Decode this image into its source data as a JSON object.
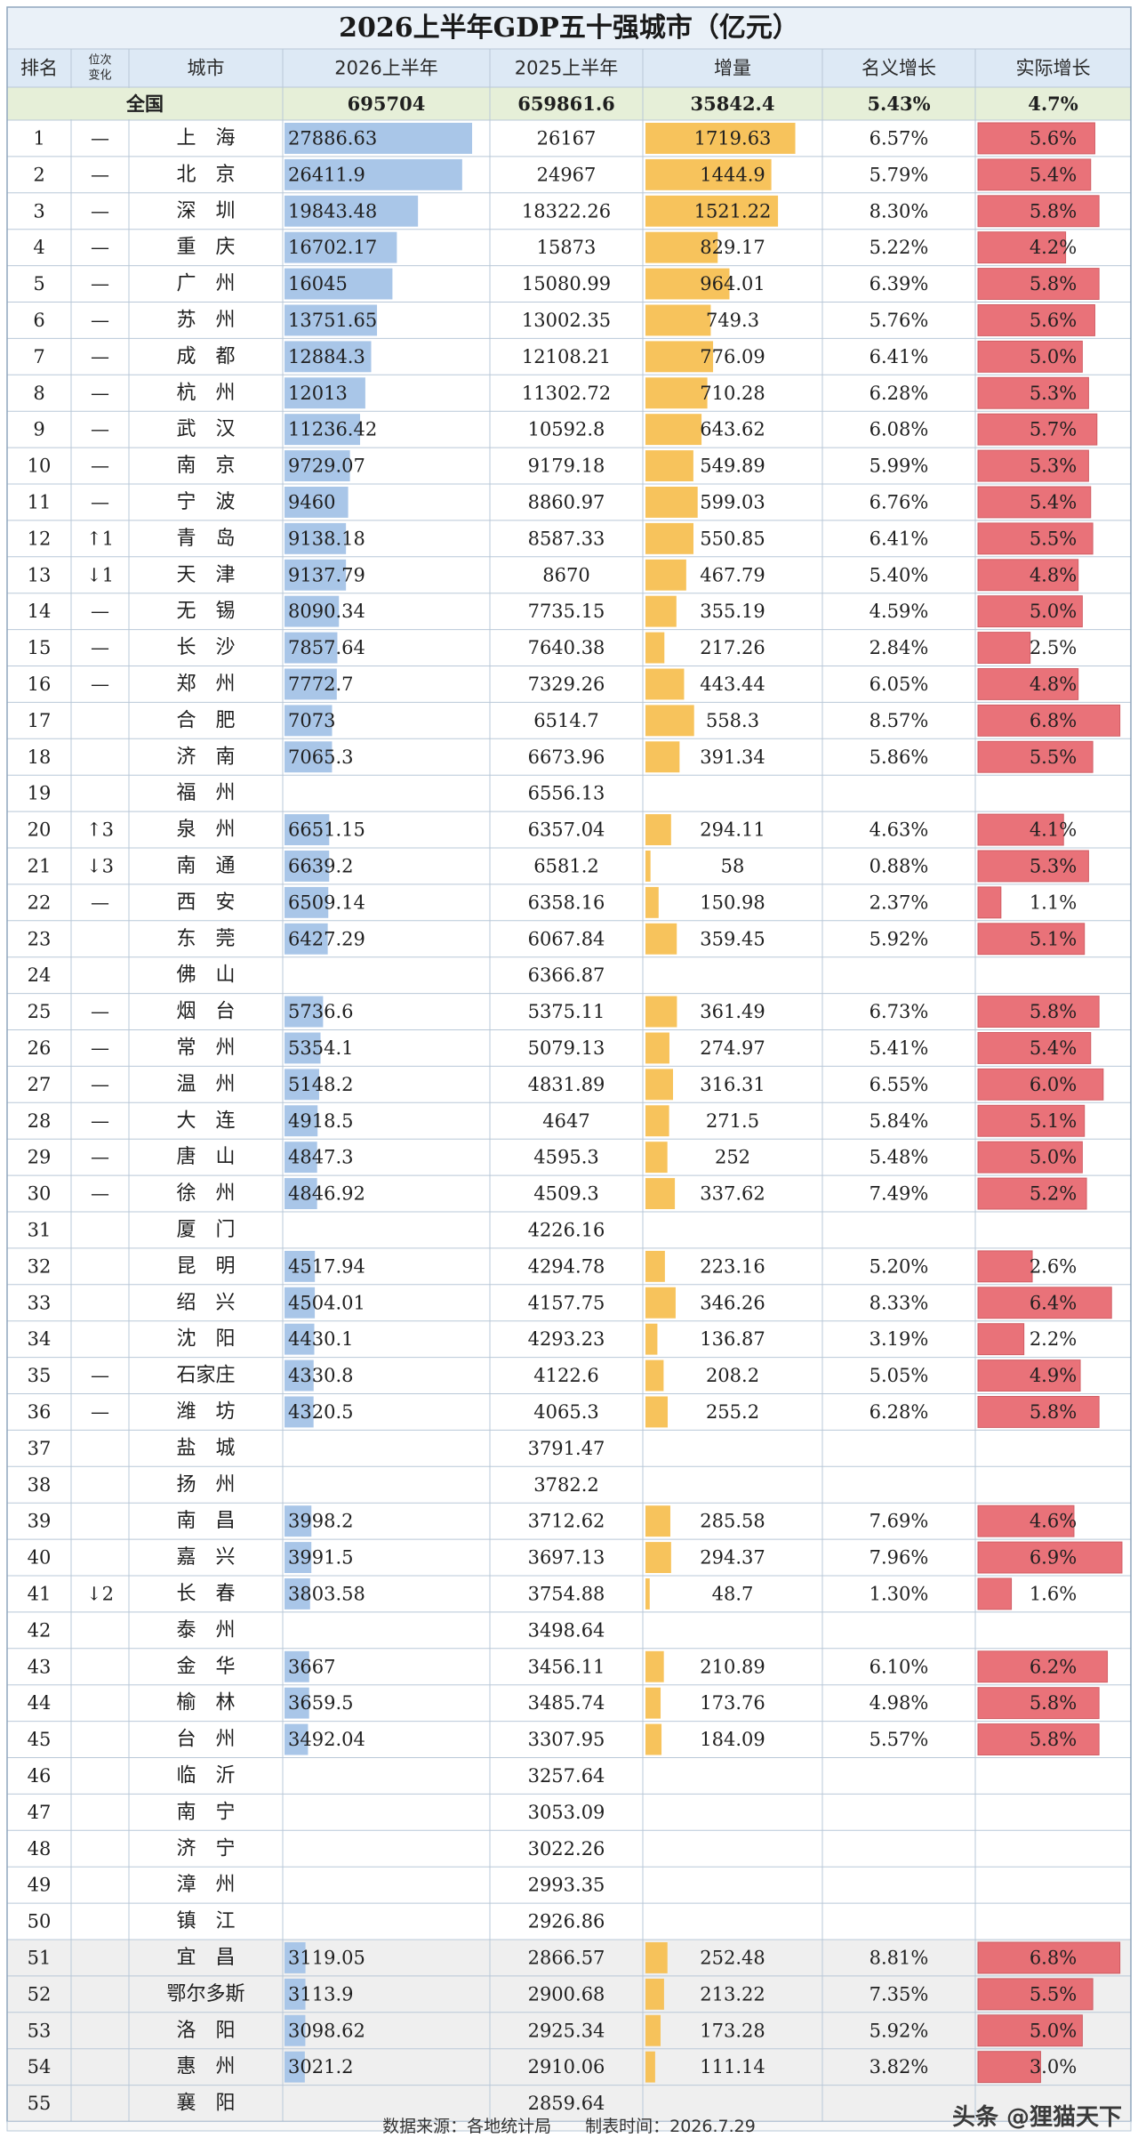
{
  "title": "2026上半年GDP五十强城市（亿元）",
  "headers": {
    "rank": "排名",
    "change_line1": "位次",
    "change_line2": "变化",
    "city": "城市",
    "gdp2026": "2026上半年",
    "gdp2025": "2025上半年",
    "increase": "增量",
    "nominal": "名义增长",
    "real": "实际增长"
  },
  "national": {
    "label": "全国",
    "gdp2026": "695704",
    "gdp2025": "659861.6",
    "increase": "35842.4",
    "nominal": "5.43%",
    "real": "4.7%"
  },
  "colors": {
    "title_bg": "#eaf1f8",
    "header_bg": "#dde9f5",
    "national_bg": "#e6efd8",
    "gdp_bar": "#a9c6e8",
    "increase_bar": "#f6bd4a",
    "real_bar": "#e65a62",
    "alt_row_bg": "#efefef",
    "grid_line": "#b9c8d8"
  },
  "scales": {
    "gdp2026_max": 30000,
    "increase_max": 2000,
    "real_max": 7.2
  },
  "chart_data": {
    "type": "table",
    "title": "2026上半年GDP五十强城市（亿元）",
    "columns": [
      "排名",
      "位次变化",
      "城市",
      "2026上半年",
      "2025上半年",
      "增量",
      "名义增长",
      "实际增长"
    ],
    "rows": [
      {
        "rank": "1",
        "change": "—",
        "city": "上　海",
        "gdp2026": "27886.63",
        "gdp2025": "26167",
        "increase": "1719.63",
        "nominal": "6.57%",
        "real": "5.6%"
      },
      {
        "rank": "2",
        "change": "—",
        "city": "北　京",
        "gdp2026": "26411.9",
        "gdp2025": "24967",
        "increase": "1444.9",
        "nominal": "5.79%",
        "real": "5.4%"
      },
      {
        "rank": "3",
        "change": "—",
        "city": "深　圳",
        "gdp2026": "19843.48",
        "gdp2025": "18322.26",
        "increase": "1521.22",
        "nominal": "8.30%",
        "real": "5.8%"
      },
      {
        "rank": "4",
        "change": "—",
        "city": "重　庆",
        "gdp2026": "16702.17",
        "gdp2025": "15873",
        "increase": "829.17",
        "nominal": "5.22%",
        "real": "4.2%"
      },
      {
        "rank": "5",
        "change": "—",
        "city": "广　州",
        "gdp2026": "16045",
        "gdp2025": "15080.99",
        "increase": "964.01",
        "nominal": "6.39%",
        "real": "5.8%"
      },
      {
        "rank": "6",
        "change": "—",
        "city": "苏　州",
        "gdp2026": "13751.65",
        "gdp2025": "13002.35",
        "increase": "749.3",
        "nominal": "5.76%",
        "real": "5.6%"
      },
      {
        "rank": "7",
        "change": "—",
        "city": "成　都",
        "gdp2026": "12884.3",
        "gdp2025": "12108.21",
        "increase": "776.09",
        "nominal": "6.41%",
        "real": "5.0%"
      },
      {
        "rank": "8",
        "change": "—",
        "city": "杭　州",
        "gdp2026": "12013",
        "gdp2025": "11302.72",
        "increase": "710.28",
        "nominal": "6.28%",
        "real": "5.3%"
      },
      {
        "rank": "9",
        "change": "—",
        "city": "武　汉",
        "gdp2026": "11236.42",
        "gdp2025": "10592.8",
        "increase": "643.62",
        "nominal": "6.08%",
        "real": "5.7%"
      },
      {
        "rank": "10",
        "change": "—",
        "city": "南　京",
        "gdp2026": "9729.07",
        "gdp2025": "9179.18",
        "increase": "549.89",
        "nominal": "5.99%",
        "real": "5.3%"
      },
      {
        "rank": "11",
        "change": "—",
        "city": "宁　波",
        "gdp2026": "9460",
        "gdp2025": "8860.97",
        "increase": "599.03",
        "nominal": "6.76%",
        "real": "5.4%"
      },
      {
        "rank": "12",
        "change": "↑1",
        "city": "青　岛",
        "gdp2026": "9138.18",
        "gdp2025": "8587.33",
        "increase": "550.85",
        "nominal": "6.41%",
        "real": "5.5%"
      },
      {
        "rank": "13",
        "change": "↓1",
        "city": "天　津",
        "gdp2026": "9137.79",
        "gdp2025": "8670",
        "increase": "467.79",
        "nominal": "5.40%",
        "real": "4.8%"
      },
      {
        "rank": "14",
        "change": "—",
        "city": "无　锡",
        "gdp2026": "8090.34",
        "gdp2025": "7735.15",
        "increase": "355.19",
        "nominal": "4.59%",
        "real": "5.0%"
      },
      {
        "rank": "15",
        "change": "—",
        "city": "长　沙",
        "gdp2026": "7857.64",
        "gdp2025": "7640.38",
        "increase": "217.26",
        "nominal": "2.84%",
        "real": "2.5%"
      },
      {
        "rank": "16",
        "change": "—",
        "city": "郑　州",
        "gdp2026": "7772.7",
        "gdp2025": "7329.26",
        "increase": "443.44",
        "nominal": "6.05%",
        "real": "4.8%"
      },
      {
        "rank": "17",
        "change": "",
        "city": "合　肥",
        "gdp2026": "7073",
        "gdp2025": "6514.7",
        "increase": "558.3",
        "nominal": "8.57%",
        "real": "6.8%"
      },
      {
        "rank": "18",
        "change": "",
        "city": "济　南",
        "gdp2026": "7065.3",
        "gdp2025": "6673.96",
        "increase": "391.34",
        "nominal": "5.86%",
        "real": "5.5%"
      },
      {
        "rank": "19",
        "change": "",
        "city": "福　州",
        "gdp2026": "",
        "gdp2025": "6556.13",
        "increase": "",
        "nominal": "",
        "real": ""
      },
      {
        "rank": "20",
        "change": "↑3",
        "city": "泉　州",
        "gdp2026": "6651.15",
        "gdp2025": "6357.04",
        "increase": "294.11",
        "nominal": "4.63%",
        "real": "4.1%"
      },
      {
        "rank": "21",
        "change": "↓3",
        "city": "南　通",
        "gdp2026": "6639.2",
        "gdp2025": "6581.2",
        "increase": "58",
        "nominal": "0.88%",
        "real": "5.3%"
      },
      {
        "rank": "22",
        "change": "—",
        "city": "西　安",
        "gdp2026": "6509.14",
        "gdp2025": "6358.16",
        "increase": "150.98",
        "nominal": "2.37%",
        "real": "1.1%"
      },
      {
        "rank": "23",
        "change": "",
        "city": "东　莞",
        "gdp2026": "6427.29",
        "gdp2025": "6067.84",
        "increase": "359.45",
        "nominal": "5.92%",
        "real": "5.1%"
      },
      {
        "rank": "24",
        "change": "",
        "city": "佛　山",
        "gdp2026": "",
        "gdp2025": "6366.87",
        "increase": "",
        "nominal": "",
        "real": ""
      },
      {
        "rank": "25",
        "change": "—",
        "city": "烟　台",
        "gdp2026": "5736.6",
        "gdp2025": "5375.11",
        "increase": "361.49",
        "nominal": "6.73%",
        "real": "5.8%"
      },
      {
        "rank": "26",
        "change": "—",
        "city": "常　州",
        "gdp2026": "5354.1",
        "gdp2025": "5079.13",
        "increase": "274.97",
        "nominal": "5.41%",
        "real": "5.4%"
      },
      {
        "rank": "27",
        "change": "—",
        "city": "温　州",
        "gdp2026": "5148.2",
        "gdp2025": "4831.89",
        "increase": "316.31",
        "nominal": "6.55%",
        "real": "6.0%"
      },
      {
        "rank": "28",
        "change": "—",
        "city": "大　连",
        "gdp2026": "4918.5",
        "gdp2025": "4647",
        "increase": "271.5",
        "nominal": "5.84%",
        "real": "5.1%"
      },
      {
        "rank": "29",
        "change": "—",
        "city": "唐　山",
        "gdp2026": "4847.3",
        "gdp2025": "4595.3",
        "increase": "252",
        "nominal": "5.48%",
        "real": "5.0%"
      },
      {
        "rank": "30",
        "change": "—",
        "city": "徐　州",
        "gdp2026": "4846.92",
        "gdp2025": "4509.3",
        "increase": "337.62",
        "nominal": "7.49%",
        "real": "5.2%"
      },
      {
        "rank": "31",
        "change": "",
        "city": "厦　门",
        "gdp2026": "",
        "gdp2025": "4226.16",
        "increase": "",
        "nominal": "",
        "real": ""
      },
      {
        "rank": "32",
        "change": "",
        "city": "昆　明",
        "gdp2026": "4517.94",
        "gdp2025": "4294.78",
        "increase": "223.16",
        "nominal": "5.20%",
        "real": "2.6%"
      },
      {
        "rank": "33",
        "change": "",
        "city": "绍　兴",
        "gdp2026": "4504.01",
        "gdp2025": "4157.75",
        "increase": "346.26",
        "nominal": "8.33%",
        "real": "6.4%"
      },
      {
        "rank": "34",
        "change": "",
        "city": "沈　阳",
        "gdp2026": "4430.1",
        "gdp2025": "4293.23",
        "increase": "136.87",
        "nominal": "3.19%",
        "real": "2.2%"
      },
      {
        "rank": "35",
        "change": "—",
        "city": "石家庄",
        "gdp2026": "4330.8",
        "gdp2025": "4122.6",
        "increase": "208.2",
        "nominal": "5.05%",
        "real": "4.9%"
      },
      {
        "rank": "36",
        "change": "—",
        "city": "潍　坊",
        "gdp2026": "4320.5",
        "gdp2025": "4065.3",
        "increase": "255.2",
        "nominal": "6.28%",
        "real": "5.8%"
      },
      {
        "rank": "37",
        "change": "",
        "city": "盐　城",
        "gdp2026": "",
        "gdp2025": "3791.47",
        "increase": "",
        "nominal": "",
        "real": ""
      },
      {
        "rank": "38",
        "change": "",
        "city": "扬　州",
        "gdp2026": "",
        "gdp2025": "3782.2",
        "increase": "",
        "nominal": "",
        "real": ""
      },
      {
        "rank": "39",
        "change": "",
        "city": "南　昌",
        "gdp2026": "3998.2",
        "gdp2025": "3712.62",
        "increase": "285.58",
        "nominal": "7.69%",
        "real": "4.6%"
      },
      {
        "rank": "40",
        "change": "",
        "city": "嘉　兴",
        "gdp2026": "3991.5",
        "gdp2025": "3697.13",
        "increase": "294.37",
        "nominal": "7.96%",
        "real": "6.9%"
      },
      {
        "rank": "41",
        "change": "↓2",
        "city": "长　春",
        "gdp2026": "3803.58",
        "gdp2025": "3754.88",
        "increase": "48.7",
        "nominal": "1.30%",
        "real": "1.6%"
      },
      {
        "rank": "42",
        "change": "",
        "city": "泰　州",
        "gdp2026": "",
        "gdp2025": "3498.64",
        "increase": "",
        "nominal": "",
        "real": ""
      },
      {
        "rank": "43",
        "change": "",
        "city": "金　华",
        "gdp2026": "3667",
        "gdp2025": "3456.11",
        "increase": "210.89",
        "nominal": "6.10%",
        "real": "6.2%"
      },
      {
        "rank": "44",
        "change": "",
        "city": "榆　林",
        "gdp2026": "3659.5",
        "gdp2025": "3485.74",
        "increase": "173.76",
        "nominal": "4.98%",
        "real": "5.8%"
      },
      {
        "rank": "45",
        "change": "",
        "city": "台　州",
        "gdp2026": "3492.04",
        "gdp2025": "3307.95",
        "increase": "184.09",
        "nominal": "5.57%",
        "real": "5.8%"
      },
      {
        "rank": "46",
        "change": "",
        "city": "临　沂",
        "gdp2026": "",
        "gdp2025": "3257.64",
        "increase": "",
        "nominal": "",
        "real": ""
      },
      {
        "rank": "47",
        "change": "",
        "city": "南　宁",
        "gdp2026": "",
        "gdp2025": "3053.09",
        "increase": "",
        "nominal": "",
        "real": ""
      },
      {
        "rank": "48",
        "change": "",
        "city": "济　宁",
        "gdp2026": "",
        "gdp2025": "3022.26",
        "increase": "",
        "nominal": "",
        "real": ""
      },
      {
        "rank": "49",
        "change": "",
        "city": "漳　州",
        "gdp2026": "",
        "gdp2025": "2993.35",
        "increase": "",
        "nominal": "",
        "real": ""
      },
      {
        "rank": "50",
        "change": "",
        "city": "镇　江",
        "gdp2026": "",
        "gdp2025": "2926.86",
        "increase": "",
        "nominal": "",
        "real": ""
      },
      {
        "rank": "51",
        "change": "",
        "city": "宜　昌",
        "gdp2026": "3119.05",
        "gdp2025": "2866.57",
        "increase": "252.48",
        "nominal": "8.81%",
        "real": "6.8%"
      },
      {
        "rank": "52",
        "change": "",
        "city": "鄂尔多斯",
        "gdp2026": "3113.9",
        "gdp2025": "2900.68",
        "increase": "213.22",
        "nominal": "7.35%",
        "real": "5.5%"
      },
      {
        "rank": "53",
        "change": "",
        "city": "洛　阳",
        "gdp2026": "3098.62",
        "gdp2025": "2925.34",
        "increase": "173.28",
        "nominal": "5.92%",
        "real": "5.0%"
      },
      {
        "rank": "54",
        "change": "",
        "city": "惠　州",
        "gdp2026": "3021.2",
        "gdp2025": "2910.06",
        "increase": "111.14",
        "nominal": "3.82%",
        "real": "3.0%"
      },
      {
        "rank": "55",
        "change": "",
        "city": "襄　阳",
        "gdp2026": "",
        "gdp2025": "2859.64",
        "increase": "",
        "nominal": "",
        "real": ""
      }
    ]
  },
  "footer": {
    "source": "数据来源：各地统计局　　制表时间：2026.7.29",
    "watermark": "头条 @狸猫天下"
  }
}
